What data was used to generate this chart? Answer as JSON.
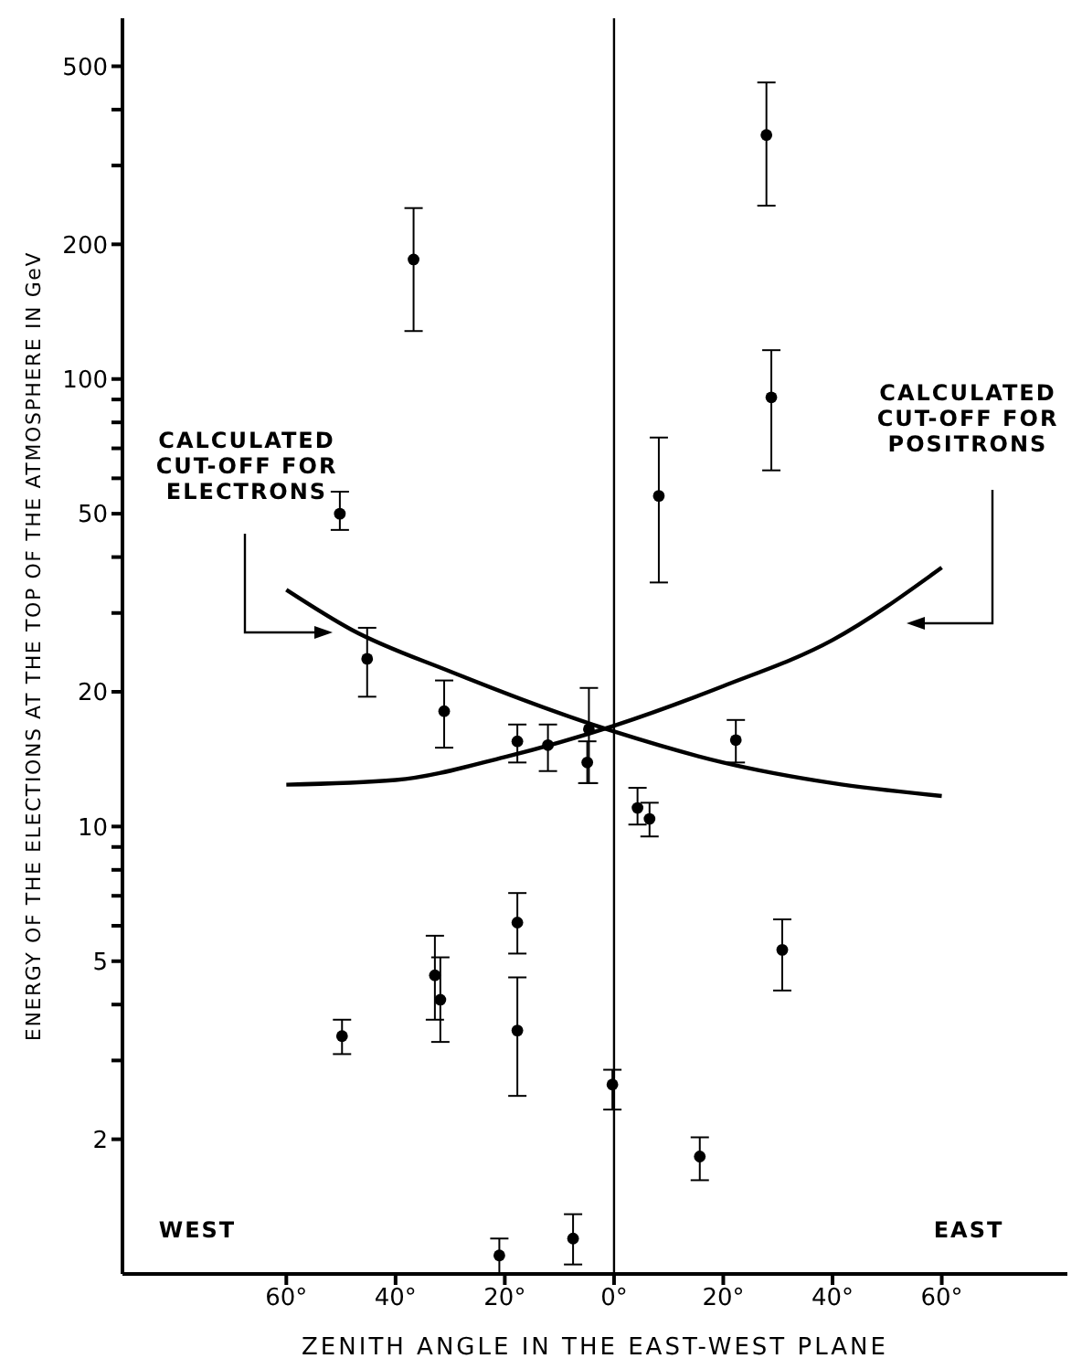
{
  "chart_data": {
    "type": "scatter",
    "xlabel": "ZENITH ANGLE IN THE EAST-WEST PLANE",
    "ylabel": "ENERGY OF THE ELECTIONS AT THE TOP OF THE ATMOSPHERE IN GeV",
    "log": "y",
    "marker": "circle",
    "xlim": [
      -90,
      83
    ],
    "xticks": [
      {
        "value": -60,
        "label": "60°"
      },
      {
        "value": -40,
        "label": "40°"
      },
      {
        "value": -20,
        "label": "20°"
      },
      {
        "value": 0,
        "label": "0°"
      },
      {
        "value": 20,
        "label": "20°"
      },
      {
        "value": 40,
        "label": "40°"
      },
      {
        "value": 60,
        "label": "60°"
      }
    ],
    "ylim": [
      1,
      640
    ],
    "yticks": [
      2,
      {
        "value": 3,
        "label": null
      },
      {
        "value": 4,
        "label": null
      },
      5,
      {
        "value": 6,
        "label": null
      },
      {
        "value": 7,
        "label": null
      },
      {
        "value": 8,
        "label": null
      },
      {
        "value": 9,
        "label": null
      },
      10,
      20,
      {
        "value": 30,
        "label": null
      },
      {
        "value": 40,
        "label": null
      },
      50,
      {
        "value": 60,
        "label": null
      },
      {
        "value": 70,
        "label": null
      },
      {
        "value": 80,
        "label": null
      },
      {
        "value": 90,
        "label": null
      },
      100,
      200,
      {
        "value": 300,
        "label": null
      },
      {
        "value": 400,
        "label": null
      },
      500
    ],
    "ref_lines": [
      {
        "axis": "x",
        "value": 0,
        "label": null,
        "color": "#000000"
      }
    ],
    "annotations": [
      "CALCULATED CUT-OFF FOR ELECTRONS",
      "CALCULATED CUT-OFF FOR POSITRONS",
      "WEST",
      "EAST"
    ],
    "series": [
      {
        "color": "#000000",
        "x": [
          -36.7,
          -50.2,
          -45.2,
          -31.1,
          -17.7,
          -12.1,
          -4.6,
          -4.9,
          -17.7,
          -17.7,
          -32.8,
          -31.8,
          -49.8,
          -21.0,
          -7.5,
          -0.3,
          4.3,
          6.5,
          22.3,
          30.8,
          15.7,
          27.9,
          28.8,
          8.2
        ],
        "values": [
          185,
          50,
          23.7,
          18.1,
          15.5,
          15.2,
          16.5,
          13.9,
          6.1,
          3.5,
          4.65,
          4.1,
          3.4,
          1.1,
          1.2,
          2.65,
          11.0,
          10.4,
          15.6,
          5.3,
          1.83,
          351,
          91,
          54.8
        ],
        "errors": [
          [
            128,
            241
          ],
          [
            46,
            56
          ],
          [
            19.5,
            27.8
          ],
          [
            15.0,
            21.2
          ],
          [
            13.9,
            16.9
          ],
          [
            13.3,
            16.9
          ],
          [
            12.5,
            20.4
          ],
          [
            12.5,
            15.5
          ],
          [
            5.2,
            7.1
          ],
          [
            2.5,
            4.6
          ],
          [
            3.7,
            5.7
          ],
          [
            3.3,
            5.1
          ],
          [
            3.1,
            3.7
          ],
          [
            1.0,
            1.2
          ],
          [
            1.05,
            1.36
          ],
          [
            2.33,
            2.86
          ],
          [
            10.1,
            12.2
          ],
          [
            9.5,
            11.3
          ],
          [
            13.9,
            17.3
          ],
          [
            4.3,
            6.2
          ],
          [
            1.62,
            2.02
          ],
          [
            244,
            460
          ],
          [
            62.5,
            116
          ],
          [
            35.1,
            74
          ]
        ]
      },
      {
        "type": "line",
        "color": "#000000",
        "marker": "none",
        "line_style": "solid",
        "x": [
          -60,
          -48,
          -30,
          0,
          20,
          40,
          60
        ],
        "values": [
          33.8,
          27.5,
          22.2,
          16.3,
          13.9,
          12.5,
          11.7
        ]
      },
      {
        "type": "line",
        "color": "#000000",
        "marker": "none",
        "line_style": "solid",
        "x": [
          -60,
          -40,
          -20,
          0,
          20,
          40,
          60
        ],
        "values": [
          12.4,
          12.7,
          14.3,
          16.8,
          20.6,
          26.1,
          37.9
        ]
      }
    ]
  }
}
